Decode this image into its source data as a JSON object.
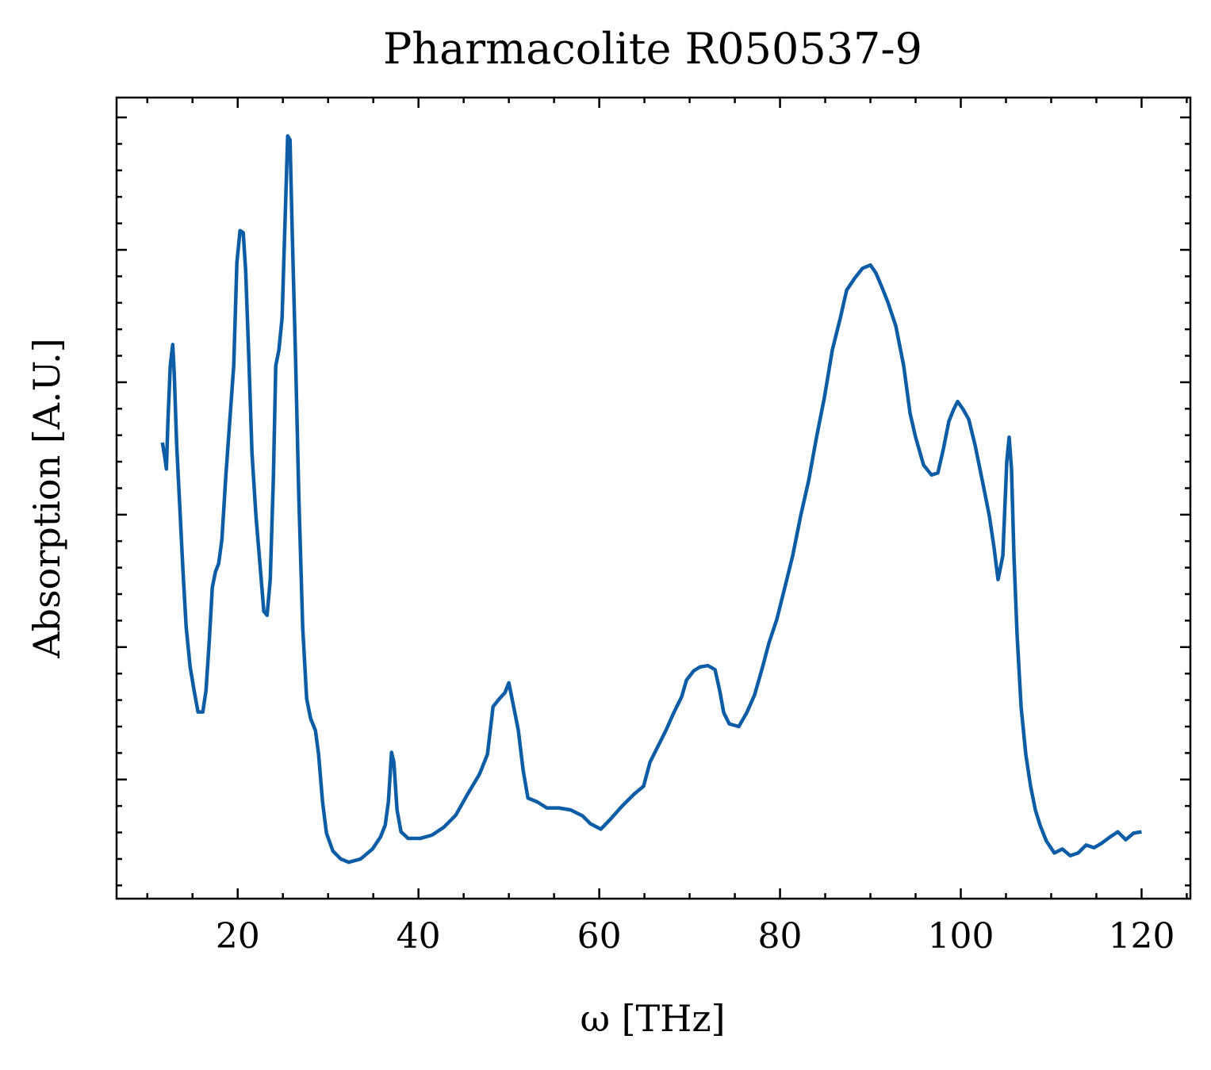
{
  "chart_data": {
    "type": "line",
    "title": "Pharmacolite R050537-9",
    "xlabel": "ω [THz]",
    "ylabel": "Absorption [A.U.]",
    "xlim": [
      6.6,
      125.4
    ],
    "ylim": [
      -0.18,
      1.03
    ],
    "xticks": [
      20,
      40,
      60,
      80,
      100,
      120
    ],
    "xminorticks": [
      10,
      15,
      25,
      30,
      35,
      45,
      50,
      55,
      65,
      70,
      75,
      85,
      90,
      95,
      105,
      110,
      115,
      125
    ],
    "yticks": [
      0,
      0.2,
      0.4,
      0.6,
      0.8,
      1.0
    ],
    "yminorticks": [
      -0.16,
      -0.12,
      -0.08,
      -0.04,
      0.04,
      0.08,
      0.12,
      0.16,
      0.24,
      0.28,
      0.32,
      0.36,
      0.44,
      0.48,
      0.52,
      0.56,
      0.64,
      0.68,
      0.72,
      0.76,
      0.84,
      0.88,
      0.92,
      0.96
    ],
    "x": [
      11.67,
      11.93,
      12.11,
      12.28,
      12.54,
      12.81,
      12.98,
      13.25,
      13.6,
      13.95,
      14.3,
      14.74,
      15.18,
      15.61,
      16.14,
      16.49,
      16.84,
      17.19,
      17.54,
      17.89,
      18.25,
      18.68,
      19.12,
      19.56,
      19.91,
      20.26,
      20.61,
      20.88,
      21.23,
      21.58,
      22.02,
      22.46,
      22.89,
      23.25,
      23.6,
      23.95,
      24.21,
      24.56,
      24.91,
      25.26,
      25.53,
      25.79,
      26.05,
      26.4,
      26.75,
      27.19,
      27.63,
      28.07,
      28.6,
      28.95,
      29.39,
      29.82,
      30.53,
      31.4,
      32.28,
      33.6,
      34.91,
      35.79,
      36.32,
      36.67,
      37.02,
      37.28,
      37.63,
      38.07,
      38.86,
      40.18,
      41.49,
      42.81,
      44.12,
      45.44,
      46.75,
      47.63,
      48.25,
      48.95,
      49.56,
      50.0,
      50.53,
      51.05,
      51.58,
      52.11,
      53.16,
      54.21,
      55.53,
      56.84,
      58.16,
      59.04,
      60.18,
      61.23,
      62.54,
      63.86,
      64.91,
      65.61,
      66.49,
      67.37,
      68.25,
      69.12,
      69.65,
      70.44,
      71.14,
      72.02,
      72.81,
      73.33,
      73.77,
      74.39,
      75.44,
      76.32,
      77.19,
      78.07,
      78.77,
      79.65,
      80.53,
      81.4,
      82.28,
      83.16,
      84.04,
      84.91,
      85.79,
      86.67,
      87.37,
      88.25,
      89.12,
      90.0,
      90.61,
      91.23,
      91.93,
      92.81,
      93.68,
      94.39,
      95.0,
      95.88,
      96.75,
      97.46,
      98.07,
      98.68,
      99.21,
      99.65,
      100.26,
      100.88,
      101.58,
      102.46,
      103.16,
      103.68,
      104.12,
      104.65,
      105.09,
      105.35,
      105.61,
      105.88,
      106.23,
      106.67,
      107.19,
      107.72,
      108.25,
      108.77,
      109.47,
      110.35,
      111.23,
      112.11,
      112.98,
      113.86,
      114.74,
      115.61,
      116.49,
      117.37,
      118.25,
      119.12,
      120.0
    ],
    "series": [
      {
        "name": "Pharmacolite R050537-9",
        "color": "#0c5da5",
        "values": [
          0.509,
          0.487,
          0.469,
          0.541,
          0.625,
          0.657,
          0.613,
          0.505,
          0.41,
          0.314,
          0.23,
          0.17,
          0.134,
          0.102,
          0.102,
          0.134,
          0.206,
          0.29,
          0.314,
          0.326,
          0.362,
          0.457,
          0.541,
          0.625,
          0.781,
          0.829,
          0.826,
          0.769,
          0.637,
          0.493,
          0.398,
          0.326,
          0.254,
          0.248,
          0.302,
          0.457,
          0.625,
          0.649,
          0.697,
          0.853,
          0.972,
          0.966,
          0.817,
          0.637,
          0.434,
          0.23,
          0.122,
          0.092,
          0.074,
          0.038,
          -0.034,
          -0.081,
          -0.108,
          -0.12,
          -0.125,
          -0.12,
          -0.105,
          -0.087,
          -0.069,
          -0.034,
          0.041,
          0.026,
          -0.046,
          -0.079,
          -0.089,
          -0.089,
          -0.084,
          -0.072,
          -0.054,
          -0.022,
          0.008,
          0.038,
          0.11,
          0.122,
          0.131,
          0.146,
          0.11,
          0.074,
          0.014,
          -0.028,
          -0.034,
          -0.043,
          -0.043,
          -0.046,
          -0.055,
          -0.067,
          -0.075,
          -0.06,
          -0.04,
          -0.022,
          -0.01,
          0.026,
          0.05,
          0.074,
          0.101,
          0.125,
          0.15,
          0.164,
          0.17,
          0.172,
          0.166,
          0.134,
          0.101,
          0.084,
          0.08,
          0.101,
          0.128,
          0.17,
          0.206,
          0.242,
          0.29,
          0.338,
          0.398,
          0.451,
          0.517,
          0.577,
          0.649,
          0.697,
          0.739,
          0.757,
          0.772,
          0.777,
          0.765,
          0.745,
          0.721,
          0.685,
          0.625,
          0.553,
          0.517,
          0.475,
          0.46,
          0.463,
          0.499,
          0.541,
          0.559,
          0.571,
          0.559,
          0.544,
          0.505,
          0.446,
          0.398,
          0.35,
          0.302,
          0.338,
          0.481,
          0.517,
          0.469,
          0.338,
          0.218,
          0.11,
          0.038,
          -0.01,
          -0.046,
          -0.069,
          -0.093,
          -0.111,
          -0.105,
          -0.115,
          -0.111,
          -0.099,
          -0.103,
          -0.096,
          -0.087,
          -0.079,
          -0.091,
          -0.081,
          -0.079
        ]
      }
    ]
  }
}
